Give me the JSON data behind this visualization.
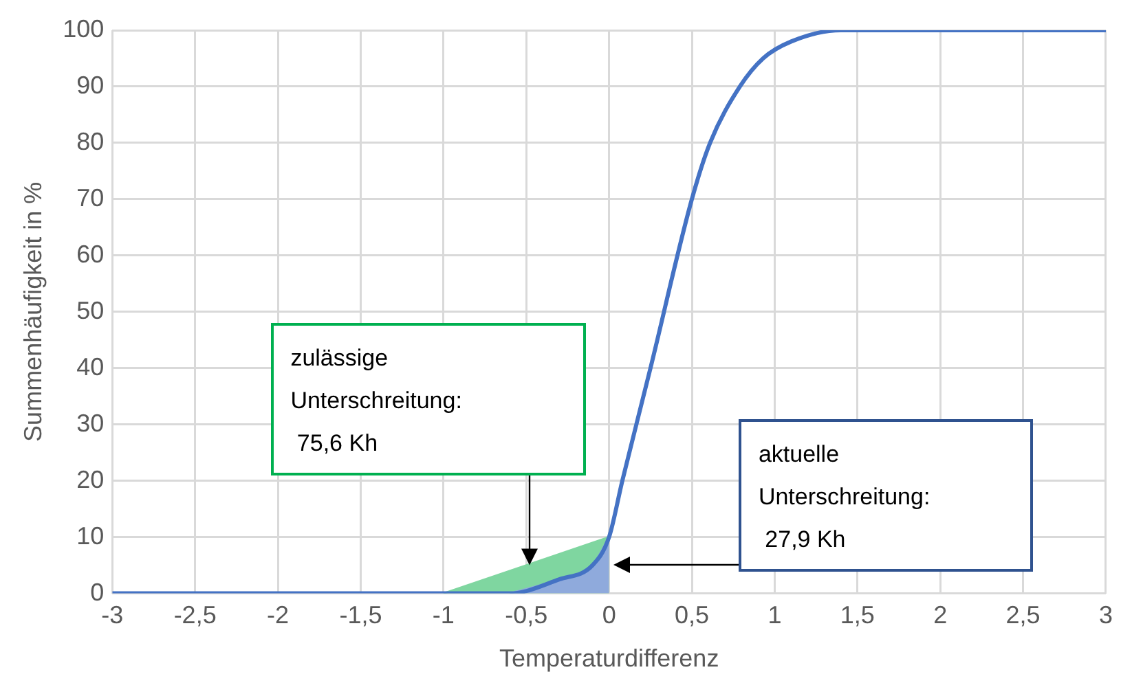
{
  "chart_data": {
    "type": "line",
    "xlabel": "Temperaturdifferenz",
    "ylabel": "Summenhäufigkeit in %",
    "xlim": [
      -3,
      3
    ],
    "xticks": [
      -3,
      {
        "value": -2.5,
        "label": "-2,5"
      },
      -2,
      {
        "value": -1.5,
        "label": "-1,5"
      },
      -1,
      {
        "value": -0.5,
        "label": "-0,5"
      },
      0,
      {
        "value": 0.5,
        "label": "0,5"
      },
      1,
      {
        "value": 1.5,
        "label": "1,5"
      },
      2,
      {
        "value": 2.5,
        "label": "2,5"
      },
      3
    ],
    "ylim": [
      0,
      100
    ],
    "yticks": [
      0,
      10,
      20,
      30,
      40,
      50,
      60,
      70,
      80,
      90,
      100
    ],
    "grid": true,
    "legend": false,
    "marker": "none",
    "series": [
      {
        "type": "area",
        "color": "#7fd6a0",
        "x": [
          -1,
          0
        ],
        "values": [
          0,
          10
        ]
      },
      {
        "type": "area",
        "color": "#8faadc",
        "x": [
          -0.6,
          -0.3,
          -0.1,
          0
        ],
        "values": [
          0,
          2.5,
          5,
          10
        ]
      },
      {
        "type": "line",
        "color": "#4472c4",
        "x": [
          -3,
          -0.6,
          -0.3,
          -0.1,
          0,
          0.08,
          0.25,
          0.5,
          0.61,
          0.79,
          0.93,
          1.1,
          1.4,
          3
        ],
        "values": [
          0,
          0,
          2.5,
          5,
          10,
          20,
          40,
          70,
          80,
          90,
          95,
          98,
          100,
          100
        ]
      }
    ],
    "annotations": [
      "zulässige\nUnterschreitung:\n 75,6 Kh",
      "aktuelle\nUnterschreitung:\n 27,9 Kh"
    ]
  }
}
